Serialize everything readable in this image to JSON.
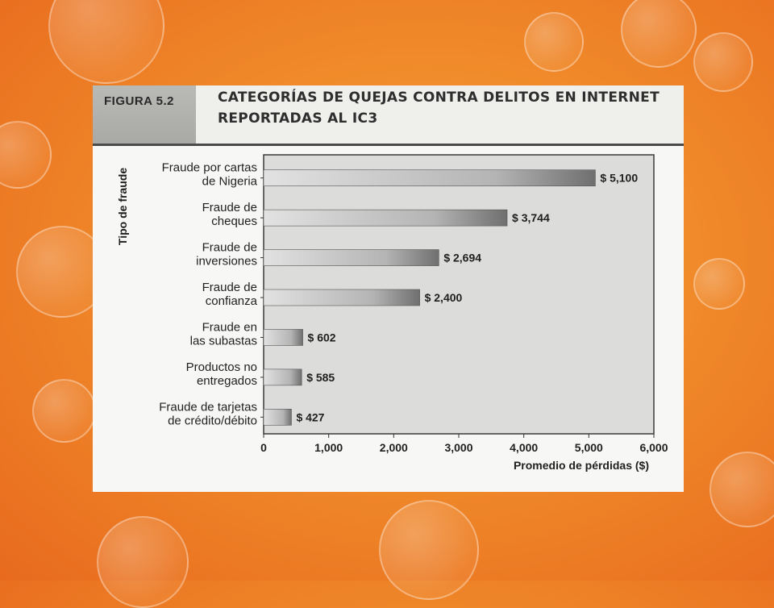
{
  "figure": {
    "label": "FIGURA 5.2",
    "title_line1": "CATEGORÍAS DE QUEJAS CONTRA DELITOS EN INTERNET",
    "title_line2": "REPORTADAS AL IC3"
  },
  "chart_data": {
    "type": "bar",
    "orientation": "horizontal",
    "categories": [
      [
        "Fraude por cartas",
        "de Nigeria"
      ],
      [
        "Fraude de",
        "cheques"
      ],
      [
        "Fraude de",
        "inversiones"
      ],
      [
        "Fraude de",
        "confianza"
      ],
      [
        "Fraude en",
        "las subastas"
      ],
      [
        "Productos no",
        "entregados"
      ],
      [
        "Fraude de tarjetas",
        "de crédito/débito"
      ]
    ],
    "values": [
      5100,
      3744,
      2694,
      2400,
      602,
      585,
      427
    ],
    "value_labels": [
      "$ 5,100",
      "$ 3,744",
      "$ 2,694",
      "$ 2,400",
      "$ 602",
      "$ 585",
      "$ 427"
    ],
    "xlim": [
      0,
      6000
    ],
    "x_ticks": [
      0,
      1000,
      2000,
      3000,
      4000,
      5000,
      6000
    ],
    "x_tick_labels": [
      "0",
      "1,000",
      "2,000",
      "3,000",
      "4,000",
      "5,000",
      "6,000"
    ],
    "xlabel": "Promedio de pérdidas ($)",
    "ylabel": "Tipo de fraude",
    "grid": false,
    "legend": "none"
  }
}
